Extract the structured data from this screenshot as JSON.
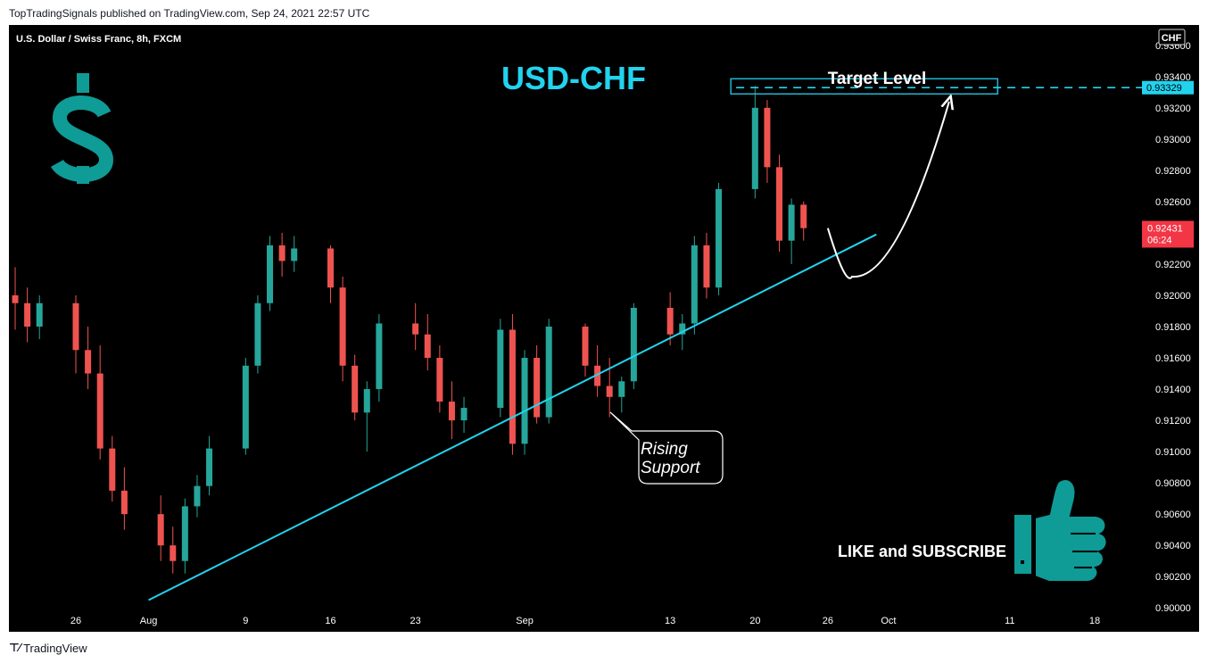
{
  "header": {
    "published": "TopTradingSignals published on TradingView.com, Sep 24, 2021 22:57 UTC"
  },
  "footer": {
    "logo_text": "TradingView"
  },
  "colors": {
    "up": "#26a69a",
    "down": "#ef5350",
    "cyan": "#22d3ee",
    "teal": "#0f9b96",
    "price_tag": "#f23645"
  },
  "chart_data": {
    "type": "candlestick",
    "symbol": "U.S. Dollar / Swiss Franc, 8h, FXCM",
    "title": "USD-CHF",
    "currency_badge": "CHF",
    "corner_value": "0",
    "y_ticks": [
      "0.93600",
      "0.93400",
      "0.93200",
      "0.93000",
      "0.92800",
      "0.92600",
      "0.92400",
      "0.92200",
      "0.92000",
      "0.91800",
      "0.91600",
      "0.91400",
      "0.91200",
      "0.91000",
      "0.90800",
      "0.90600",
      "0.90400",
      "0.90200",
      "0.90000"
    ],
    "x_ticks": [
      {
        "label": "26",
        "date": "2021-07-26"
      },
      {
        "label": "Aug",
        "date": "2021-08-01"
      },
      {
        "label": "9",
        "date": "2021-08-09"
      },
      {
        "label": "16",
        "date": "2021-08-16"
      },
      {
        "label": "23",
        "date": "2021-08-23"
      },
      {
        "label": "Sep",
        "date": "2021-09-01"
      },
      {
        "label": "13",
        "date": "2021-09-13"
      },
      {
        "label": "20",
        "date": "2021-09-20"
      },
      {
        "label": "26",
        "date": "2021-09-26"
      },
      {
        "label": "Oct",
        "date": "2021-10-01"
      },
      {
        "label": "11",
        "date": "2021-10-11"
      },
      {
        "label": "18",
        "date": "2021-10-18"
      }
    ],
    "ylim": [
      0.8995,
      0.9373
    ],
    "target_level": {
      "label": "Target Level",
      "value": 0.93329,
      "value_text": "0.93329"
    },
    "last_price": {
      "value": 0.92431,
      "value_text": "0.92431",
      "countdown": "06:24"
    },
    "annotations": {
      "support_label_line1": "Rising",
      "support_label_line2": "Support",
      "cta": "LIKE and SUBSCRIBE"
    },
    "support_line": {
      "start": {
        "date": "2021-08-01",
        "value": 0.9005
      },
      "end": {
        "date": "2021-09-30",
        "value": 0.9239
      }
    },
    "projection": {
      "start": {
        "date": "2021-09-26",
        "value": 0.9243
      },
      "low": {
        "date": "2021-09-28",
        "value": 0.9212
      },
      "end": {
        "date": "2021-10-06",
        "value": 0.9324
      }
    },
    "candles": [
      {
        "date": "2021-07-20",
        "o": 0.9205,
        "h": 0.9232,
        "l": 0.919,
        "c": 0.92
      },
      {
        "date": "2021-07-21",
        "o": 0.92,
        "h": 0.9218,
        "l": 0.9178,
        "c": 0.9195
      },
      {
        "date": "2021-07-22",
        "o": 0.9195,
        "h": 0.9205,
        "l": 0.917,
        "c": 0.918
      },
      {
        "date": "2021-07-23",
        "o": 0.918,
        "h": 0.92,
        "l": 0.9172,
        "c": 0.9195
      },
      {
        "date": "2021-07-26",
        "o": 0.9195,
        "h": 0.92,
        "l": 0.915,
        "c": 0.9165
      },
      {
        "date": "2021-07-27",
        "o": 0.9165,
        "h": 0.918,
        "l": 0.914,
        "c": 0.915
      },
      {
        "date": "2021-07-28",
        "o": 0.915,
        "h": 0.9168,
        "l": 0.9095,
        "c": 0.9102
      },
      {
        "date": "2021-07-29",
        "o": 0.9102,
        "h": 0.911,
        "l": 0.9068,
        "c": 0.9075
      },
      {
        "date": "2021-07-30",
        "o": 0.9075,
        "h": 0.909,
        "l": 0.905,
        "c": 0.906
      },
      {
        "date": "2021-08-02",
        "o": 0.906,
        "h": 0.9072,
        "l": 0.903,
        "c": 0.904
      },
      {
        "date": "2021-08-03",
        "o": 0.904,
        "h": 0.9052,
        "l": 0.9022,
        "c": 0.903
      },
      {
        "date": "2021-08-04",
        "o": 0.903,
        "h": 0.907,
        "l": 0.9022,
        "c": 0.9065
      },
      {
        "date": "2021-08-05",
        "o": 0.9065,
        "h": 0.9085,
        "l": 0.9058,
        "c": 0.9078
      },
      {
        "date": "2021-08-06",
        "o": 0.9078,
        "h": 0.911,
        "l": 0.9072,
        "c": 0.9102
      },
      {
        "date": "2021-08-09",
        "o": 0.9102,
        "h": 0.916,
        "l": 0.9098,
        "c": 0.9155
      },
      {
        "date": "2021-08-10",
        "o": 0.9155,
        "h": 0.92,
        "l": 0.915,
        "c": 0.9195
      },
      {
        "date": "2021-08-11",
        "o": 0.9195,
        "h": 0.9238,
        "l": 0.919,
        "c": 0.9232
      },
      {
        "date": "2021-08-12",
        "o": 0.9232,
        "h": 0.924,
        "l": 0.9212,
        "c": 0.9222
      },
      {
        "date": "2021-08-13",
        "o": 0.9222,
        "h": 0.9238,
        "l": 0.9215,
        "c": 0.923
      },
      {
        "date": "2021-08-16",
        "o": 0.923,
        "h": 0.9232,
        "l": 0.9195,
        "c": 0.9205
      },
      {
        "date": "2021-08-17",
        "o": 0.9205,
        "h": 0.9212,
        "l": 0.9145,
        "c": 0.9155
      },
      {
        "date": "2021-08-18",
        "o": 0.9155,
        "h": 0.9162,
        "l": 0.912,
        "c": 0.9125
      },
      {
        "date": "2021-08-19",
        "o": 0.9125,
        "h": 0.9145,
        "l": 0.91,
        "c": 0.914
      },
      {
        "date": "2021-08-20",
        "o": 0.914,
        "h": 0.9188,
        "l": 0.9132,
        "c": 0.9182
      },
      {
        "date": "2021-08-23",
        "o": 0.9182,
        "h": 0.9195,
        "l": 0.9165,
        "c": 0.9175
      },
      {
        "date": "2021-08-24",
        "o": 0.9175,
        "h": 0.9188,
        "l": 0.9152,
        "c": 0.916
      },
      {
        "date": "2021-08-25",
        "o": 0.916,
        "h": 0.9168,
        "l": 0.9125,
        "c": 0.9132
      },
      {
        "date": "2021-08-26",
        "o": 0.9132,
        "h": 0.9145,
        "l": 0.9108,
        "c": 0.912
      },
      {
        "date": "2021-08-27",
        "o": 0.912,
        "h": 0.9135,
        "l": 0.9112,
        "c": 0.9128
      },
      {
        "date": "2021-08-30",
        "o": 0.9128,
        "h": 0.9185,
        "l": 0.9122,
        "c": 0.9178
      },
      {
        "date": "2021-08-31",
        "o": 0.9178,
        "h": 0.9188,
        "l": 0.9098,
        "c": 0.9105
      },
      {
        "date": "2021-09-01",
        "o": 0.9105,
        "h": 0.9165,
        "l": 0.9098,
        "c": 0.916
      },
      {
        "date": "2021-09-02",
        "o": 0.916,
        "h": 0.9168,
        "l": 0.9118,
        "c": 0.9122
      },
      {
        "date": "2021-09-03",
        "o": 0.9122,
        "h": 0.9185,
        "l": 0.9118,
        "c": 0.918
      },
      {
        "date": "2021-09-06",
        "o": 0.918,
        "h": 0.9182,
        "l": 0.9148,
        "c": 0.9155
      },
      {
        "date": "2021-09-07",
        "o": 0.9155,
        "h": 0.9168,
        "l": 0.9135,
        "c": 0.9142
      },
      {
        "date": "2021-09-08",
        "o": 0.9142,
        "h": 0.916,
        "l": 0.9122,
        "c": 0.9135
      },
      {
        "date": "2021-09-09",
        "o": 0.9135,
        "h": 0.9148,
        "l": 0.9125,
        "c": 0.9145
      },
      {
        "date": "2021-09-10",
        "o": 0.9145,
        "h": 0.9195,
        "l": 0.914,
        "c": 0.9192
      },
      {
        "date": "2021-09-13",
        "o": 0.9192,
        "h": 0.9202,
        "l": 0.9168,
        "c": 0.9175
      },
      {
        "date": "2021-09-14",
        "o": 0.9175,
        "h": 0.9188,
        "l": 0.9165,
        "c": 0.9182
      },
      {
        "date": "2021-09-15",
        "o": 0.9182,
        "h": 0.9238,
        "l": 0.9175,
        "c": 0.9232
      },
      {
        "date": "2021-09-16",
        "o": 0.9232,
        "h": 0.924,
        "l": 0.9198,
        "c": 0.9205
      },
      {
        "date": "2021-09-17",
        "o": 0.9205,
        "h": 0.9272,
        "l": 0.92,
        "c": 0.9268
      },
      {
        "date": "2021-09-20",
        "o": 0.9268,
        "h": 0.9334,
        "l": 0.9262,
        "c": 0.932
      },
      {
        "date": "2021-09-21",
        "o": 0.932,
        "h": 0.9325,
        "l": 0.9272,
        "c": 0.9282
      },
      {
        "date": "2021-09-22",
        "o": 0.9282,
        "h": 0.929,
        "l": 0.9228,
        "c": 0.9235
      },
      {
        "date": "2021-09-23",
        "o": 0.9235,
        "h": 0.9262,
        "l": 0.922,
        "c": 0.9258
      },
      {
        "date": "2021-09-24",
        "o": 0.9258,
        "h": 0.926,
        "l": 0.9235,
        "c": 0.9243
      }
    ]
  }
}
